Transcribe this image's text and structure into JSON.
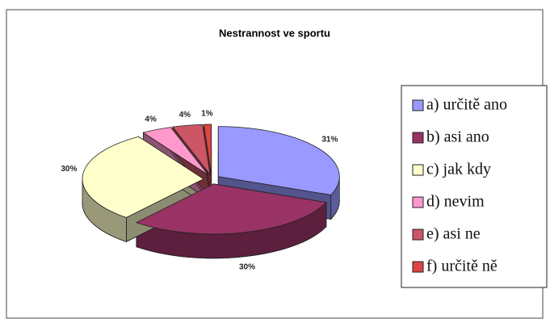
{
  "chart_data": {
    "type": "pie",
    "title": "Nestrannost ve sportu",
    "categories": [
      "a) určitě ano",
      "b) asi ano",
      "c) jak kdy",
      "d) nevim",
      "e) asi ne",
      "f) určitě ně"
    ],
    "values": [
      31,
      30,
      30,
      4,
      4,
      1
    ],
    "value_labels": [
      "31%",
      "30%",
      "30%",
      "4%",
      "4%",
      "1%"
    ],
    "colors": [
      "#9999ff",
      "#993366",
      "#ffffcc",
      "#ff99cc",
      "#cc5566",
      "#dd4444"
    ],
    "legend": "right"
  }
}
